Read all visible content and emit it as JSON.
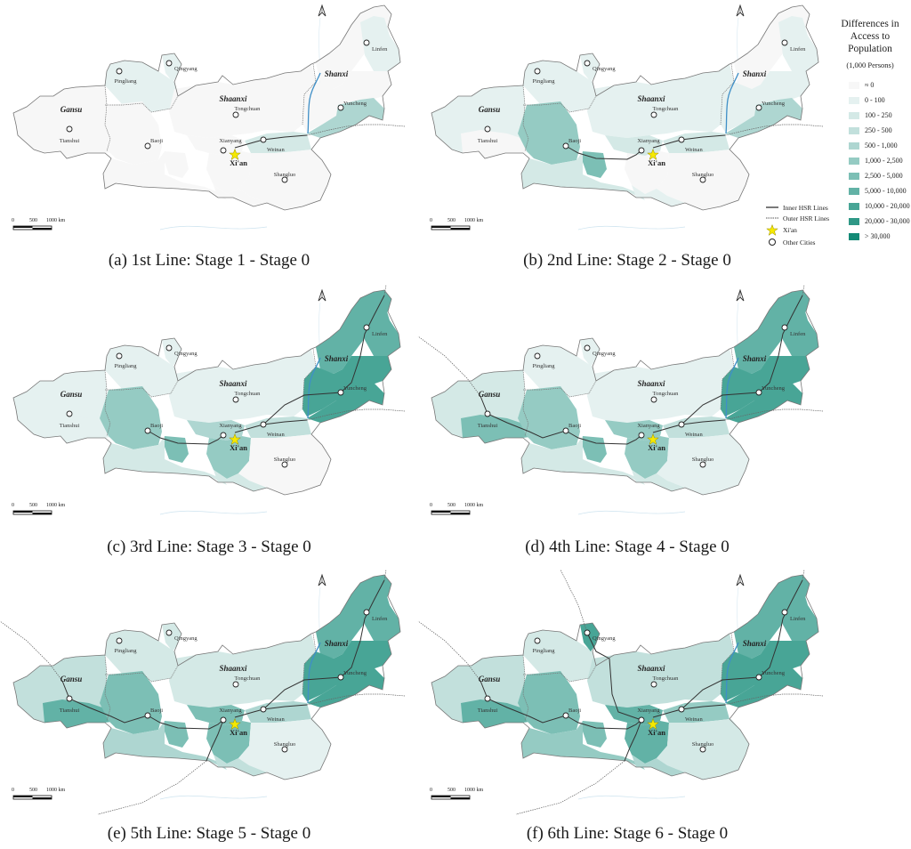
{
  "figure": {
    "legend": {
      "title_line1": "Differences in",
      "title_line2": "Access to Population",
      "unit": "(1,000 Persons)",
      "classes": [
        {
          "label": "≈ 0",
          "color": "#f7f7f7"
        },
        {
          "label": "0 - 100",
          "color": "#e5f1f0"
        },
        {
          "label": "100 - 250",
          "color": "#d4e9e6"
        },
        {
          "label": "250 - 500",
          "color": "#c2e0dc"
        },
        {
          "label": "500 - 1,000",
          "color": "#aed6d1"
        },
        {
          "label": "1,000 - 2,500",
          "color": "#95cbc3"
        },
        {
          "label": "2,500 - 5,000",
          "color": "#7cbfb5"
        },
        {
          "label": "5,000 - 10,000",
          "color": "#62b2a6"
        },
        {
          "label": "10,000 - 20,000",
          "color": "#48a596"
        },
        {
          "label": "20,000 - 30,000",
          "color": "#2f9886"
        },
        {
          "label": "> 30,000",
          "color": "#138a76"
        }
      ]
    },
    "symbol_legend": {
      "inner": "Inner HSR Lines",
      "outer": "Outer HSR Lines",
      "xian": "Xi'an",
      "other": "Other Cities"
    },
    "scale_bar": {
      "t0": "0",
      "t1": "500",
      "t2": "1000 km"
    },
    "province_labels": {
      "gansu": "Gansu",
      "shaanxi": "Shaanxi",
      "shanxi": "Shanxi"
    },
    "cities": {
      "xian": "Xi'an",
      "xianyang": "Xianyang",
      "weinan": "Weinan",
      "baoji": "Baoji",
      "tongchuan": "Tongchuan",
      "shangluo": "Shangluo",
      "tianshui": "Tianshui",
      "pingliang": "Pingliang",
      "qingyang": "Qingyang",
      "yuncheng": "Yuncheng",
      "linfen": "Linfen"
    },
    "panels": [
      {
        "id": "a",
        "caption": "(a) 1st Line: Stage 1 - Stage 0"
      },
      {
        "id": "b",
        "caption": "(b) 2nd Line: Stage 2 - Stage 0"
      },
      {
        "id": "c",
        "caption": "(c) 3rd Line: Stage 3 - Stage 0"
      },
      {
        "id": "d",
        "caption": "(d) 4th Line: Stage 4 - Stage 0"
      },
      {
        "id": "e",
        "caption": "(e) 5th Line: Stage 5 - Stage 0"
      },
      {
        "id": "f",
        "caption": "(f) 6th Line: Stage 6 - Stage 0"
      }
    ]
  },
  "chart_data": {
    "type": "choropleth-map",
    "title": "Differences in Access to Population (1,000 Persons)",
    "legend_classes": [
      "≈ 0",
      "0 - 100",
      "100 - 250",
      "250 - 500",
      "500 - 1,000",
      "1,000 - 2,500",
      "2,500 - 5,000",
      "5,000 - 10,000",
      "10,000 - 20,000",
      "20,000 - 30,000",
      "> 30,000"
    ],
    "regions": [
      "gansu_west",
      "tianshui",
      "pingliang",
      "qingyang",
      "baoji",
      "baoji_south",
      "central_west",
      "tongchuan_north",
      "xianyang",
      "xian",
      "weinan",
      "shangluo",
      "south_central",
      "shanxi_north",
      "linfen",
      "shanxi_mid",
      "yuncheng"
    ],
    "panels": [
      {
        "id": "a",
        "caption": "(a) 1st Line: Stage 1 - Stage 0",
        "class_index": [
          0,
          0,
          1,
          1,
          0,
          0,
          0,
          0,
          0,
          0,
          2,
          0,
          0,
          0,
          1,
          0,
          4
        ]
      },
      {
        "id": "b",
        "caption": "(b) 2nd Line: Stage 2 - Stage 0",
        "class_index": [
          1,
          0,
          1,
          1,
          5,
          6,
          2,
          1,
          2,
          0,
          2,
          0,
          1,
          0,
          1,
          1,
          4
        ]
      },
      {
        "id": "c",
        "caption": "(c) 3rd Line: Stage 3 - Stage 0",
        "class_index": [
          1,
          1,
          1,
          1,
          5,
          6,
          2,
          1,
          4,
          5,
          3,
          0,
          2,
          7,
          7,
          8,
          8
        ]
      },
      {
        "id": "d",
        "caption": "(d) 4th Line: Stage 4 - Stage 0",
        "class_index": [
          2,
          6,
          1,
          1,
          5,
          6,
          2,
          1,
          5,
          5,
          3,
          1,
          2,
          7,
          7,
          8,
          8
        ]
      },
      {
        "id": "e",
        "caption": "(e) 5th Line: Stage 5 - Stage 0",
        "class_index": [
          3,
          7,
          2,
          2,
          6,
          6,
          4,
          2,
          6,
          6,
          4,
          1,
          3,
          7,
          7,
          8,
          8
        ]
      },
      {
        "id": "f",
        "caption": "(f) 6th Line: Stage 6 - Stage 0",
        "class_index": [
          3,
          7,
          2,
          8,
          6,
          6,
          5,
          3,
          7,
          7,
          5,
          2,
          4,
          7,
          7,
          8,
          8
        ]
      }
    ],
    "hsr_lines_per_stage": {
      "a": [
        "Xi'an-Weinan-East"
      ],
      "b": [
        "Xi'an-Weinan-East",
        "Baoji-Xianyang"
      ],
      "c": [
        "Xi'an-Weinan-East",
        "Baoji-Xianyang",
        "Weinan-Yuncheng-Linfen"
      ],
      "d": [
        "Xi'an-Weinan-East",
        "Baoji-Xianyang",
        "Weinan-Yuncheng-Linfen",
        "Tianshui-Baoji"
      ],
      "e": [
        "Xi'an-Weinan-East",
        "Baoji-Xianyang",
        "Weinan-Yuncheng-Linfen",
        "Tianshui-Baoji",
        "Xi'an-Southwest"
      ],
      "f": [
        "Xi'an-Weinan-East",
        "Baoji-Xianyang",
        "Weinan-Yuncheng-Linfen",
        "Tianshui-Baoji",
        "Xi'an-Southwest",
        "Xianyang-Qingyang"
      ]
    }
  }
}
